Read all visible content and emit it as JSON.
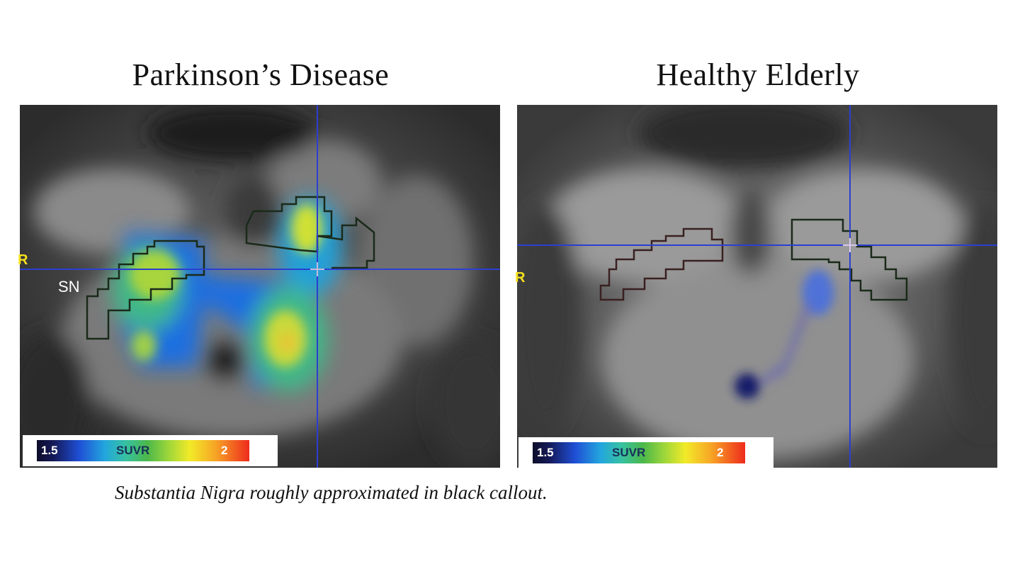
{
  "panels": [
    {
      "title": "Parkinson’s Disease",
      "region_label": "SN",
      "side_marker": "R",
      "colorbar": {
        "min_label": "1.5",
        "label": "SUVR",
        "max_label": "2"
      }
    },
    {
      "title": "Healthy Elderly",
      "side_marker": "R",
      "colorbar": {
        "min_label": "1.5",
        "label": "SUVR",
        "max_label": "2"
      }
    }
  ],
  "caption": "Substantia Nigra roughly approximated in black callout.",
  "colors": {
    "crosshair": "#2b3fd0",
    "outline": "#1a2a1a",
    "side_marker": "#f6e21d"
  }
}
